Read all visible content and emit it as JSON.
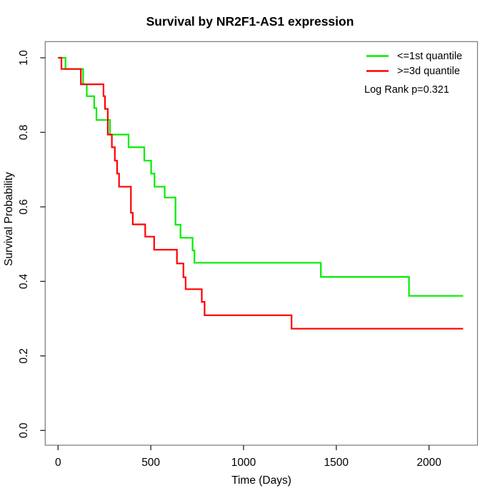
{
  "chart_data": {
    "type": "line",
    "subtype": "kaplan-meier-step",
    "title": "Survival by NR2F1-AS1 expression",
    "xlabel": "Time (Days)",
    "ylabel": "Survival Probability",
    "x_ticks": [
      0,
      500,
      1000,
      1500,
      2000
    ],
    "y_tick_labels": [
      "0.0",
      "0.2",
      "0.4",
      "0.6",
      "0.8",
      "1.0"
    ],
    "y_tick_values": [
      0.0,
      0.2,
      0.4,
      0.6,
      0.8,
      1.0
    ],
    "xlim": [
      0,
      2200
    ],
    "ylim": [
      0.0,
      1.0
    ],
    "grid": false,
    "legend_position": "top-right",
    "annotation": "Log Rank p=0.321",
    "series": [
      {
        "name": "<=1st quantile",
        "color": "#00EE00",
        "points": [
          [
            0,
            1.0
          ],
          [
            40,
            0.97
          ],
          [
            135,
            0.929
          ],
          [
            155,
            0.897
          ],
          [
            195,
            0.865
          ],
          [
            207,
            0.833
          ],
          [
            280,
            0.794
          ],
          [
            380,
            0.76
          ],
          [
            465,
            0.724
          ],
          [
            502,
            0.689
          ],
          [
            520,
            0.654
          ],
          [
            575,
            0.625
          ],
          [
            633,
            0.552
          ],
          [
            660,
            0.517
          ],
          [
            725,
            0.483
          ],
          [
            735,
            0.45
          ],
          [
            1417,
            0.412
          ],
          [
            1892,
            0.361
          ],
          [
            2184,
            0.361
          ]
        ]
      },
      {
        "name": ">=3d quantile",
        "color": "#FF0000",
        "points": [
          [
            0,
            1.0
          ],
          [
            18,
            0.97
          ],
          [
            123,
            0.929
          ],
          [
            245,
            0.897
          ],
          [
            253,
            0.863
          ],
          [
            268,
            0.794
          ],
          [
            290,
            0.76
          ],
          [
            306,
            0.724
          ],
          [
            318,
            0.689
          ],
          [
            329,
            0.654
          ],
          [
            393,
            0.584
          ],
          [
            403,
            0.553
          ],
          [
            470,
            0.52
          ],
          [
            518,
            0.485
          ],
          [
            641,
            0.448
          ],
          [
            676,
            0.411
          ],
          [
            688,
            0.379
          ],
          [
            775,
            0.345
          ],
          [
            790,
            0.309
          ],
          [
            1259,
            0.273
          ],
          [
            2184,
            0.273
          ]
        ]
      }
    ]
  }
}
